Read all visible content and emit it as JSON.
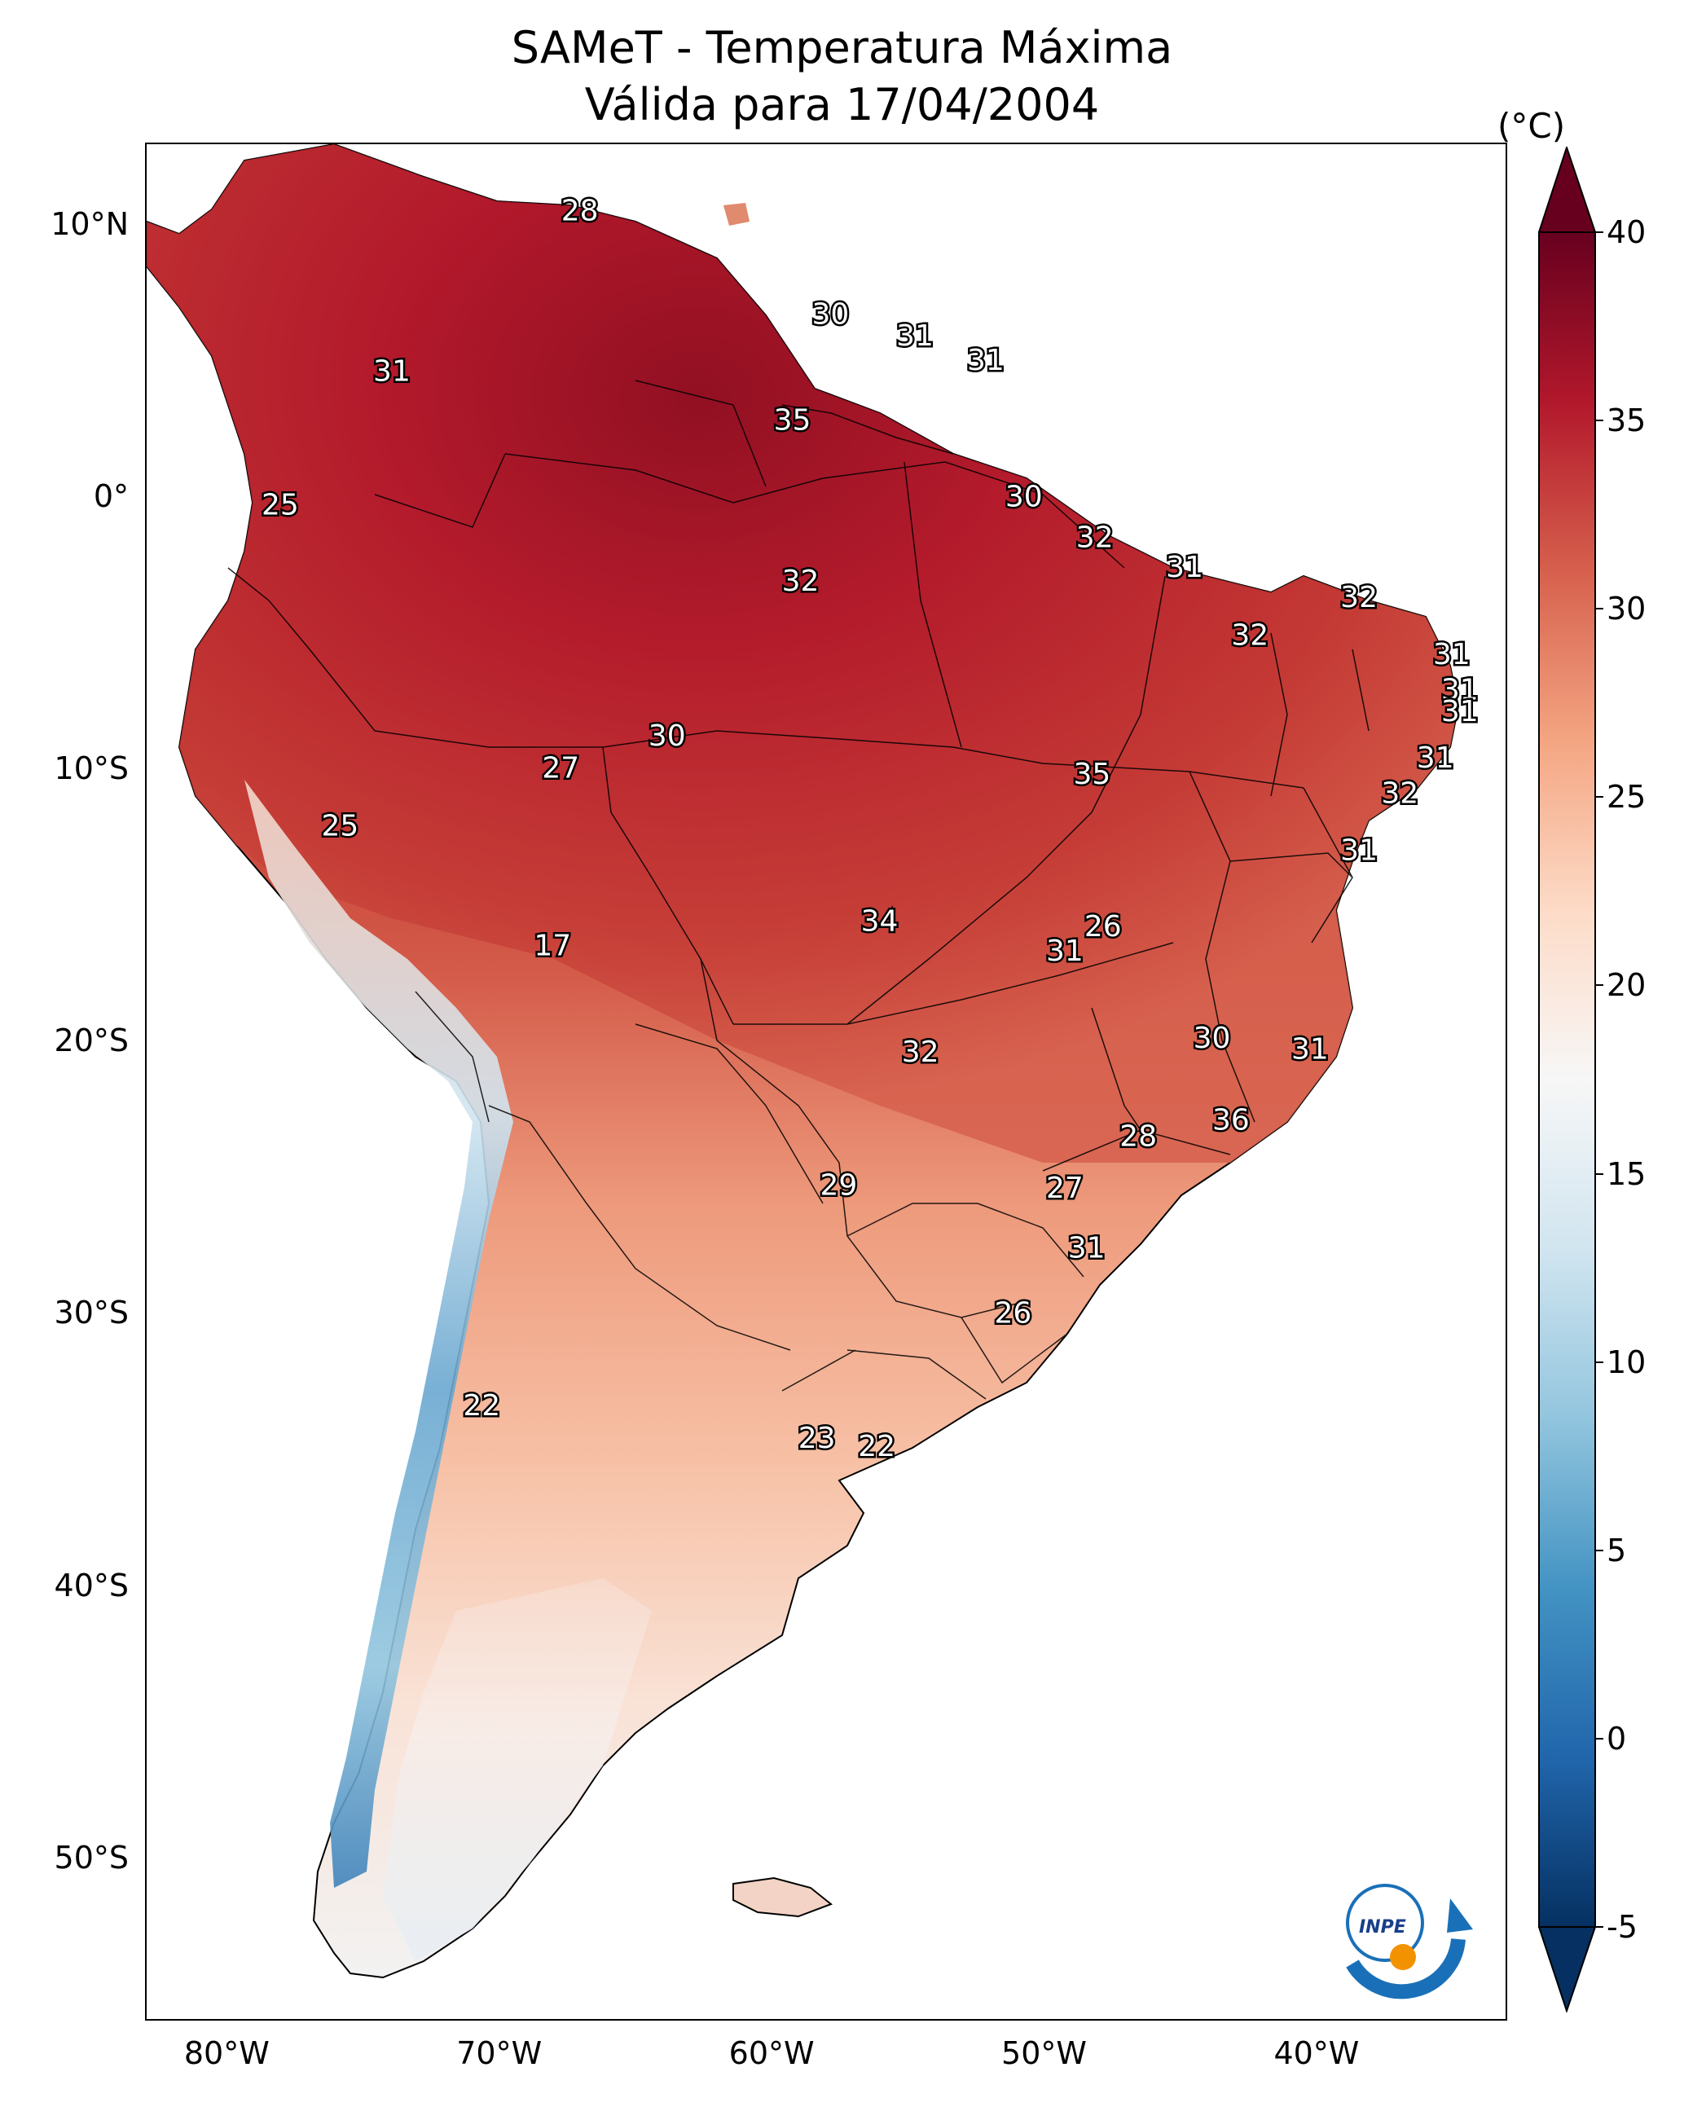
{
  "title": {
    "line1": "SAMeT - Temperatura Máxima",
    "line2": "Válida para 17/04/2004"
  },
  "map": {
    "extent_lon": [
      -83,
      -33
    ],
    "extent_lat": [
      -56,
      13
    ],
    "lat_ticks": [
      {
        "value": 10,
        "label": "10°N"
      },
      {
        "value": 0,
        "label": "0°"
      },
      {
        "value": -10,
        "label": "10°S"
      },
      {
        "value": -20,
        "label": "20°S"
      },
      {
        "value": -30,
        "label": "30°S"
      },
      {
        "value": -40,
        "label": "40°S"
      },
      {
        "value": -50,
        "label": "50°S"
      }
    ],
    "lon_ticks": [
      {
        "value": -80,
        "label": "80°W"
      },
      {
        "value": -70,
        "label": "70°W"
      },
      {
        "value": -60,
        "label": "60°W"
      },
      {
        "value": -50,
        "label": "50°W"
      },
      {
        "value": -40,
        "label": "40°W"
      }
    ],
    "station_labels": [
      {
        "lon": -67.1,
        "lat": 10.5,
        "text": "28"
      },
      {
        "lon": -57.9,
        "lat": 6.7,
        "text": "30"
      },
      {
        "lon": -54.8,
        "lat": 5.9,
        "text": "31"
      },
      {
        "lon": -52.2,
        "lat": 5.0,
        "text": "31"
      },
      {
        "lon": -74.0,
        "lat": 4.6,
        "text": "31"
      },
      {
        "lon": -59.3,
        "lat": 2.8,
        "text": "35"
      },
      {
        "lon": -50.8,
        "lat": 0.0,
        "text": "30"
      },
      {
        "lon": -78.1,
        "lat": -0.3,
        "text": "25"
      },
      {
        "lon": -48.2,
        "lat": -1.5,
        "text": "32"
      },
      {
        "lon": -44.9,
        "lat": -2.6,
        "text": "31"
      },
      {
        "lon": -59.0,
        "lat": -3.1,
        "text": "32"
      },
      {
        "lon": -38.5,
        "lat": -3.7,
        "text": "32"
      },
      {
        "lon": -42.5,
        "lat": -5.1,
        "text": "32"
      },
      {
        "lon": -35.1,
        "lat": -5.8,
        "text": "31"
      },
      {
        "lon": -34.8,
        "lat": -7.1,
        "text": "31"
      },
      {
        "lon": -34.8,
        "lat": -7.9,
        "text": "31"
      },
      {
        "lon": -63.9,
        "lat": -8.8,
        "text": "30"
      },
      {
        "lon": -67.8,
        "lat": -9.97,
        "text": "27"
      },
      {
        "lon": -35.7,
        "lat": -9.6,
        "text": "31"
      },
      {
        "lon": -48.3,
        "lat": -10.2,
        "text": "35"
      },
      {
        "lon": -37.0,
        "lat": -10.9,
        "text": "32"
      },
      {
        "lon": -75.9,
        "lat": -12.1,
        "text": "25"
      },
      {
        "lon": -38.5,
        "lat": -13.0,
        "text": "31"
      },
      {
        "lon": -56.1,
        "lat": -15.6,
        "text": "34"
      },
      {
        "lon": -47.9,
        "lat": -15.8,
        "text": "26"
      },
      {
        "lon": -49.3,
        "lat": -16.7,
        "text": "31"
      },
      {
        "lon": -68.1,
        "lat": -16.5,
        "text": "17"
      },
      {
        "lon": -43.9,
        "lat": -19.9,
        "text": "30"
      },
      {
        "lon": -40.3,
        "lat": -20.3,
        "text": "31"
      },
      {
        "lon": -54.6,
        "lat": -20.4,
        "text": "32"
      },
      {
        "lon": -43.2,
        "lat": -22.9,
        "text": "36"
      },
      {
        "lon": -46.6,
        "lat": -23.5,
        "text": "28"
      },
      {
        "lon": -57.6,
        "lat": -25.3,
        "text": "29"
      },
      {
        "lon": -49.3,
        "lat": -25.4,
        "text": "27"
      },
      {
        "lon": -48.5,
        "lat": -27.6,
        "text": "31"
      },
      {
        "lon": -51.2,
        "lat": -30.0,
        "text": "26"
      },
      {
        "lon": -70.7,
        "lat": -33.4,
        "text": "22"
      },
      {
        "lon": -58.4,
        "lat": -34.6,
        "text": "23"
      },
      {
        "lon": -56.2,
        "lat": -34.9,
        "text": "22"
      }
    ]
  },
  "colorbar": {
    "unit": "(°C)",
    "vmin": -5,
    "vmax": 40,
    "ticks": [
      {
        "value": 40,
        "label": "40"
      },
      {
        "value": 35,
        "label": "35"
      },
      {
        "value": 30,
        "label": "30"
      },
      {
        "value": 25,
        "label": "25"
      },
      {
        "value": 20,
        "label": "20"
      },
      {
        "value": 15,
        "label": "15"
      },
      {
        "value": 10,
        "label": "10"
      },
      {
        "value": 5,
        "label": "5"
      },
      {
        "value": 0,
        "label": "0"
      },
      {
        "value": -5,
        "label": "-5"
      }
    ],
    "colors": [
      "#053061",
      "#2166ac",
      "#4393c3",
      "#92c5de",
      "#d1e5f0",
      "#f7f7f7",
      "#fddbc7",
      "#f4a582",
      "#d6604d",
      "#b2182b",
      "#67001f"
    ]
  },
  "logo": {
    "text": "INPE",
    "icon": "inpe-logo-icon"
  }
}
